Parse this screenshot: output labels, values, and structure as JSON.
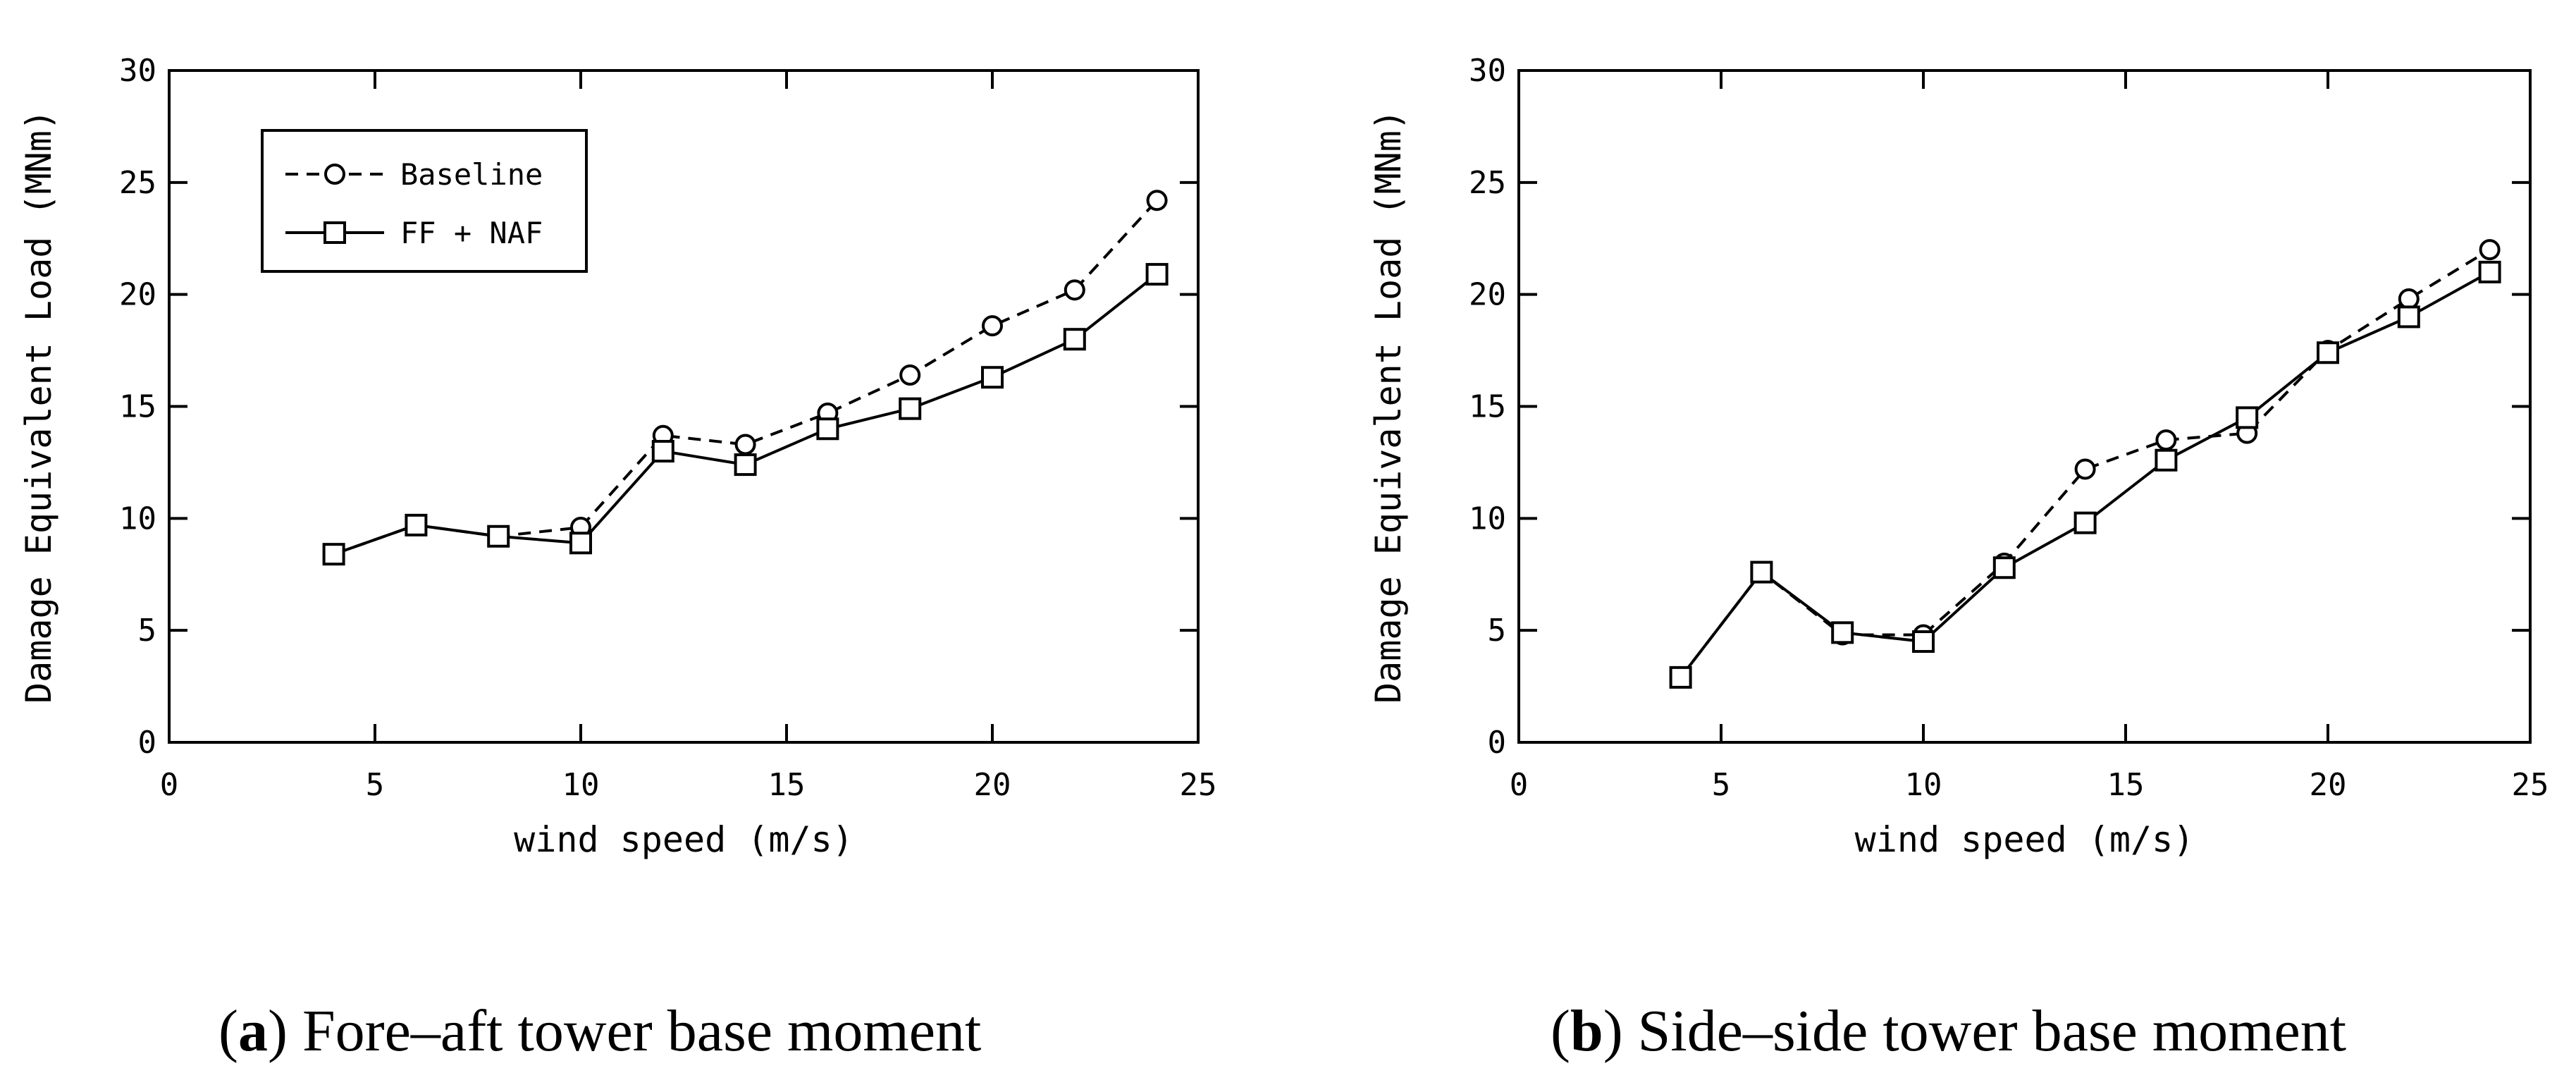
{
  "chart_data": [
    {
      "type": "line",
      "caption_letter": "a",
      "caption_text": "Fore–aft tower base moment",
      "xlabel": "wind speed (m/s)",
      "ylabel": "Damage Equivalent Load (MNm)",
      "xlim": [
        0,
        25
      ],
      "ylim": [
        0,
        30
      ],
      "xticks": [
        0,
        5,
        10,
        15,
        20,
        25
      ],
      "yticks": [
        0,
        5,
        10,
        15,
        20,
        25,
        30
      ],
      "grid": false,
      "legend_position": "top-left",
      "x": [
        4,
        6,
        8,
        10,
        12,
        14,
        16,
        18,
        20,
        22,
        24
      ],
      "series": [
        {
          "name": "Baseline",
          "marker": "circle",
          "line": "dashed",
          "values": [
            8.4,
            9.7,
            9.2,
            9.6,
            13.7,
            13.3,
            14.7,
            16.4,
            18.6,
            20.2,
            24.2
          ]
        },
        {
          "name": "FF + NAF",
          "marker": "square",
          "line": "solid",
          "values": [
            8.4,
            9.7,
            9.2,
            8.9,
            13.0,
            12.4,
            14.0,
            14.9,
            16.3,
            18.0,
            20.9
          ]
        }
      ]
    },
    {
      "type": "line",
      "caption_letter": "b",
      "caption_text": "Side–side tower base moment",
      "xlabel": "wind speed (m/s)",
      "ylabel": "Damage Equivalent Load (MNm)",
      "xlim": [
        0,
        25
      ],
      "ylim": [
        0,
        30
      ],
      "xticks": [
        0,
        5,
        10,
        15,
        20,
        25
      ],
      "yticks": [
        0,
        5,
        10,
        15,
        20,
        25,
        30
      ],
      "grid": false,
      "x": [
        4,
        6,
        8,
        10,
        12,
        14,
        16,
        18,
        20,
        22,
        24
      ],
      "series": [
        {
          "marker": "circle",
          "line": "dashed",
          "values": [
            2.9,
            7.6,
            4.8,
            4.8,
            8.0,
            12.2,
            13.5,
            13.8,
            17.5,
            19.8,
            22.0
          ]
        },
        {
          "marker": "square",
          "line": "solid",
          "values": [
            2.9,
            7.6,
            4.9,
            4.5,
            7.8,
            9.8,
            12.6,
            14.5,
            17.4,
            19.0,
            21.0
          ]
        }
      ]
    }
  ]
}
